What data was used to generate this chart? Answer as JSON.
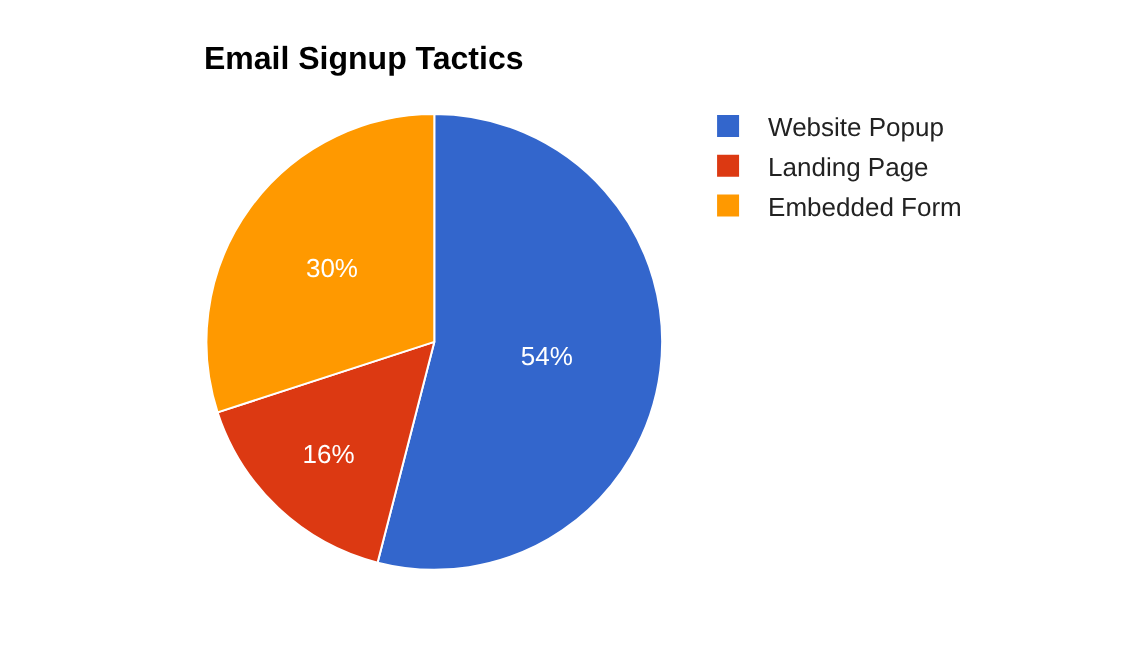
{
  "chart_data": {
    "type": "pie",
    "title": "Email Signup Tactics",
    "categories": [
      "Website Popup",
      "Landing Page",
      "Embedded Form"
    ],
    "values": [
      54,
      16,
      30
    ],
    "colors": [
      "#3366cc",
      "#dc3912",
      "#ff9900"
    ],
    "value_labels": [
      "54%",
      "16%",
      "30%"
    ],
    "legend": "top right"
  }
}
